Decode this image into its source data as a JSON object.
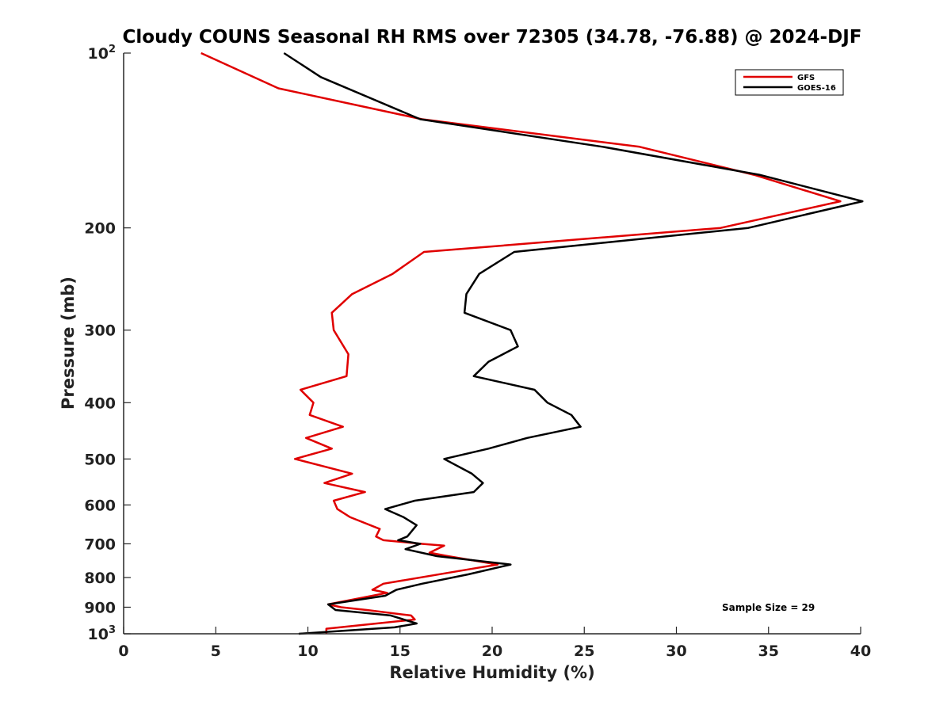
{
  "chart_data": {
    "type": "line",
    "title": "Cloudy COUNS Seasonal RH RMS over 72305 (34.78, -76.88) @ 2024-DJF",
    "xlabel": "Relative Humidity (%)",
    "ylabel": "Pressure (mb)",
    "xlim": [
      0,
      40
    ],
    "ylim": [
      100,
      1000
    ],
    "y_scale": "log",
    "y_reversed": true,
    "x_ticks": [
      0,
      5,
      10,
      15,
      20,
      25,
      30,
      35,
      40
    ],
    "y_ticks": [
      {
        "value": 100,
        "base": "10",
        "exp": "2"
      },
      {
        "value": 200,
        "label": "200"
      },
      {
        "value": 300,
        "label": "300"
      },
      {
        "value": 400,
        "label": "400"
      },
      {
        "value": 500,
        "label": "500"
      },
      {
        "value": 600,
        "label": "600"
      },
      {
        "value": 700,
        "label": "700"
      },
      {
        "value": 800,
        "label": "800"
      },
      {
        "value": 900,
        "label": "900"
      },
      {
        "value": 1000,
        "base": "10",
        "exp": "3"
      }
    ],
    "legend_position": "top-right",
    "annotation": "Sample Size = 29",
    "series": [
      {
        "name": "GFS",
        "color": "#e00000",
        "points": [
          [
            4.2,
            100
          ],
          [
            8.4,
            115
          ],
          [
            16.2,
            130
          ],
          [
            28,
            145
          ],
          [
            34.2,
            162
          ],
          [
            38.9,
            180
          ],
          [
            32.4,
            200
          ],
          [
            16.3,
            220
          ],
          [
            14.6,
            240
          ],
          [
            12.4,
            260
          ],
          [
            11.3,
            280
          ],
          [
            11.4,
            300
          ],
          [
            12.2,
            330
          ],
          [
            12.1,
            360
          ],
          [
            9.6,
            380
          ],
          [
            10.3,
            400
          ],
          [
            10.1,
            420
          ],
          [
            11.9,
            440
          ],
          [
            9.9,
            460
          ],
          [
            11.3,
            480
          ],
          [
            9.3,
            500
          ],
          [
            12.4,
            530
          ],
          [
            10.9,
            550
          ],
          [
            13.1,
            570
          ],
          [
            11.4,
            590
          ],
          [
            11.6,
            610
          ],
          [
            12.3,
            630
          ],
          [
            13.9,
            660
          ],
          [
            13.7,
            680
          ],
          [
            14.1,
            690
          ],
          [
            16.2,
            700
          ],
          [
            17.4,
            705
          ],
          [
            16.6,
            725
          ],
          [
            17.6,
            735
          ],
          [
            20.3,
            760
          ],
          [
            19.2,
            770
          ],
          [
            14.1,
            820
          ],
          [
            13.5,
            840
          ],
          [
            14.3,
            850
          ],
          [
            11.1,
            890
          ],
          [
            11.8,
            900
          ],
          [
            13.2,
            910
          ],
          [
            15.6,
            930
          ],
          [
            15.8,
            945
          ],
          [
            11.0,
            980
          ],
          [
            11.0,
            1000
          ]
        ]
      },
      {
        "name": "GOES-16",
        "color": "#000000",
        "points": [
          [
            8.7,
            100
          ],
          [
            10.7,
            110
          ],
          [
            16.1,
            130
          ],
          [
            26,
            145
          ],
          [
            34.5,
            162
          ],
          [
            40.1,
            180
          ],
          [
            33.9,
            200
          ],
          [
            21.2,
            220
          ],
          [
            19.3,
            240
          ],
          [
            18.6,
            260
          ],
          [
            18.5,
            280
          ],
          [
            21.0,
            300
          ],
          [
            21.4,
            320
          ],
          [
            19.8,
            340
          ],
          [
            19.0,
            360
          ],
          [
            22.3,
            380
          ],
          [
            23.0,
            400
          ],
          [
            24.3,
            420
          ],
          [
            24.8,
            440
          ],
          [
            21.9,
            460
          ],
          [
            19.8,
            480
          ],
          [
            17.4,
            500
          ],
          [
            18.9,
            530
          ],
          [
            19.5,
            550
          ],
          [
            19.0,
            570
          ],
          [
            15.8,
            590
          ],
          [
            14.2,
            610
          ],
          [
            15.2,
            630
          ],
          [
            15.9,
            650
          ],
          [
            15.4,
            680
          ],
          [
            14.9,
            690
          ],
          [
            16.1,
            700
          ],
          [
            15.3,
            715
          ],
          [
            17.0,
            735
          ],
          [
            21.0,
            760
          ],
          [
            18.7,
            790
          ],
          [
            16.2,
            820
          ],
          [
            14.8,
            840
          ],
          [
            14.2,
            860
          ],
          [
            11.1,
            890
          ],
          [
            11.5,
            910
          ],
          [
            14.5,
            930
          ],
          [
            15.9,
            960
          ],
          [
            14.7,
            975
          ],
          [
            9.5,
            1000
          ]
        ]
      }
    ]
  }
}
